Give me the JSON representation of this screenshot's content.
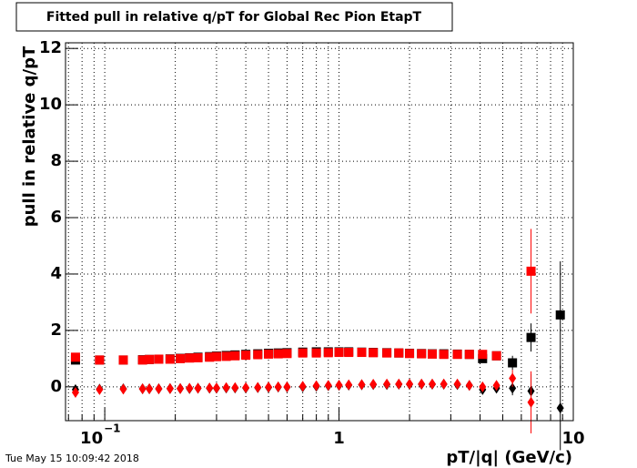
{
  "chart_data": {
    "type": "errorbar",
    "title": "Fitted pull in relative q/pT for Global Rec Pion EtapT",
    "x_label": "pT/|q| (GeV/c)",
    "y_label": "pull in relative q/pT",
    "timestamp": "Tue May 15 10:09:42 2018",
    "x_log": true,
    "grid": true,
    "xlim": [
      0.068,
      10
    ],
    "ylim": [
      -1.2,
      12.2
    ],
    "xticks": [
      {
        "value": 0.1,
        "label": "10",
        "exponent": "−1"
      },
      1,
      10
    ],
    "xminorticks": [
      0.07,
      0.08,
      0.09,
      0.2,
      0.3,
      0.4,
      0.5,
      0.6,
      0.7,
      0.8,
      0.9,
      2,
      3,
      4,
      5,
      6,
      7,
      8,
      9
    ],
    "yticks": [
      0,
      2,
      4,
      6,
      8,
      10,
      12
    ],
    "x": [
      0.075,
      0.095,
      0.12,
      0.145,
      0.155,
      0.17,
      0.19,
      0.21,
      0.23,
      0.25,
      0.28,
      0.3,
      0.33,
      0.36,
      0.4,
      0.45,
      0.5,
      0.55,
      0.6,
      0.7,
      0.8,
      0.9,
      1.0,
      1.1,
      1.25,
      1.4,
      1.6,
      1.8,
      2.0,
      2.25,
      2.5,
      2.8,
      3.2,
      3.6,
      4.1,
      4.7,
      5.5,
      6.6,
      8.8
    ],
    "series": [
      {
        "color": "#000000",
        "marker": "square",
        "values": [
          0.95,
          0.95,
          0.95,
          0.96,
          0.97,
          0.98,
          0.99,
          1.01,
          1.03,
          1.05,
          1.07,
          1.09,
          1.11,
          1.13,
          1.15,
          1.17,
          1.19,
          1.2,
          1.21,
          1.23,
          1.24,
          1.24,
          1.24,
          1.24,
          1.23,
          1.22,
          1.21,
          1.2,
          1.19,
          1.18,
          1.17,
          1.17,
          1.16,
          1.15,
          1.0,
          1.1,
          0.85,
          1.75,
          2.55
        ],
        "errors": [
          0.03,
          0.03,
          0.03,
          0.03,
          0.03,
          0.03,
          0.03,
          0.03,
          0.03,
          0.03,
          0.03,
          0.03,
          0.03,
          0.03,
          0.03,
          0.03,
          0.03,
          0.03,
          0.03,
          0.03,
          0.03,
          0.03,
          0.03,
          0.03,
          0.03,
          0.03,
          0.03,
          0.03,
          0.03,
          0.04,
          0.04,
          0.05,
          0.06,
          0.07,
          0.1,
          0.15,
          0.25,
          0.5,
          1.9
        ]
      },
      {
        "color": "#ff0000",
        "marker": "square",
        "values": [
          1.05,
          0.95,
          0.95,
          0.95,
          0.97,
          0.98,
          0.98,
          1.0,
          1.02,
          1.03,
          1.05,
          1.07,
          1.08,
          1.1,
          1.12,
          1.14,
          1.16,
          1.17,
          1.18,
          1.2,
          1.2,
          1.21,
          1.22,
          1.22,
          1.22,
          1.21,
          1.2,
          1.2,
          1.18,
          1.17,
          1.16,
          1.15,
          1.15,
          1.15,
          1.15,
          1.1,
          null,
          4.1,
          null
        ],
        "errors": [
          0.03,
          0.03,
          0.03,
          0.03,
          0.03,
          0.03,
          0.03,
          0.03,
          0.03,
          0.03,
          0.03,
          0.03,
          0.03,
          0.03,
          0.03,
          0.03,
          0.03,
          0.03,
          0.03,
          0.03,
          0.03,
          0.03,
          0.03,
          0.03,
          0.03,
          0.03,
          0.03,
          0.03,
          0.03,
          0.04,
          0.04,
          0.05,
          0.06,
          0.07,
          0.1,
          0.15,
          null,
          1.5,
          null
        ]
      },
      {
        "color": "#000000",
        "marker": "diamond",
        "values": [
          -0.1,
          -0.08,
          -0.07,
          -0.07,
          -0.07,
          -0.07,
          -0.06,
          -0.06,
          -0.06,
          -0.05,
          -0.05,
          -0.05,
          -0.04,
          -0.04,
          -0.04,
          -0.03,
          -0.02,
          -0.01,
          -0.01,
          0.0,
          0.02,
          0.04,
          0.05,
          0.06,
          0.07,
          0.08,
          0.08,
          0.09,
          0.09,
          0.09,
          0.09,
          0.09,
          0.08,
          0.05,
          -0.1,
          -0.05,
          -0.05,
          -0.15,
          -0.75
        ],
        "errors": [
          0.03,
          0.03,
          0.03,
          0.03,
          0.03,
          0.03,
          0.03,
          0.03,
          0.03,
          0.03,
          0.03,
          0.03,
          0.03,
          0.03,
          0.03,
          0.03,
          0.03,
          0.03,
          0.03,
          0.03,
          0.03,
          0.03,
          0.03,
          0.03,
          0.03,
          0.03,
          0.03,
          0.03,
          0.03,
          0.04,
          0.04,
          0.05,
          0.06,
          0.07,
          0.1,
          0.15,
          0.25,
          0.6,
          1.5
        ]
      },
      {
        "color": "#ff0000",
        "marker": "diamond",
        "values": [
          -0.2,
          -0.1,
          -0.08,
          -0.07,
          -0.07,
          -0.07,
          -0.06,
          -0.06,
          -0.05,
          -0.05,
          -0.04,
          -0.04,
          -0.03,
          -0.03,
          -0.03,
          -0.02,
          -0.01,
          0.0,
          0.0,
          0.02,
          0.04,
          0.05,
          0.06,
          0.07,
          0.08,
          0.09,
          0.1,
          0.1,
          0.1,
          0.1,
          0.1,
          0.1,
          0.1,
          0.05,
          0.0,
          0.05,
          0.3,
          -0.55,
          null
        ],
        "errors": [
          0.03,
          0.03,
          0.03,
          0.03,
          0.03,
          0.03,
          0.03,
          0.03,
          0.03,
          0.03,
          0.03,
          0.03,
          0.03,
          0.03,
          0.03,
          0.03,
          0.03,
          0.03,
          0.03,
          0.03,
          0.03,
          0.03,
          0.03,
          0.03,
          0.03,
          0.03,
          0.03,
          0.03,
          0.03,
          0.04,
          0.04,
          0.05,
          0.06,
          0.07,
          0.1,
          0.15,
          0.3,
          1.1,
          null
        ]
      }
    ]
  }
}
